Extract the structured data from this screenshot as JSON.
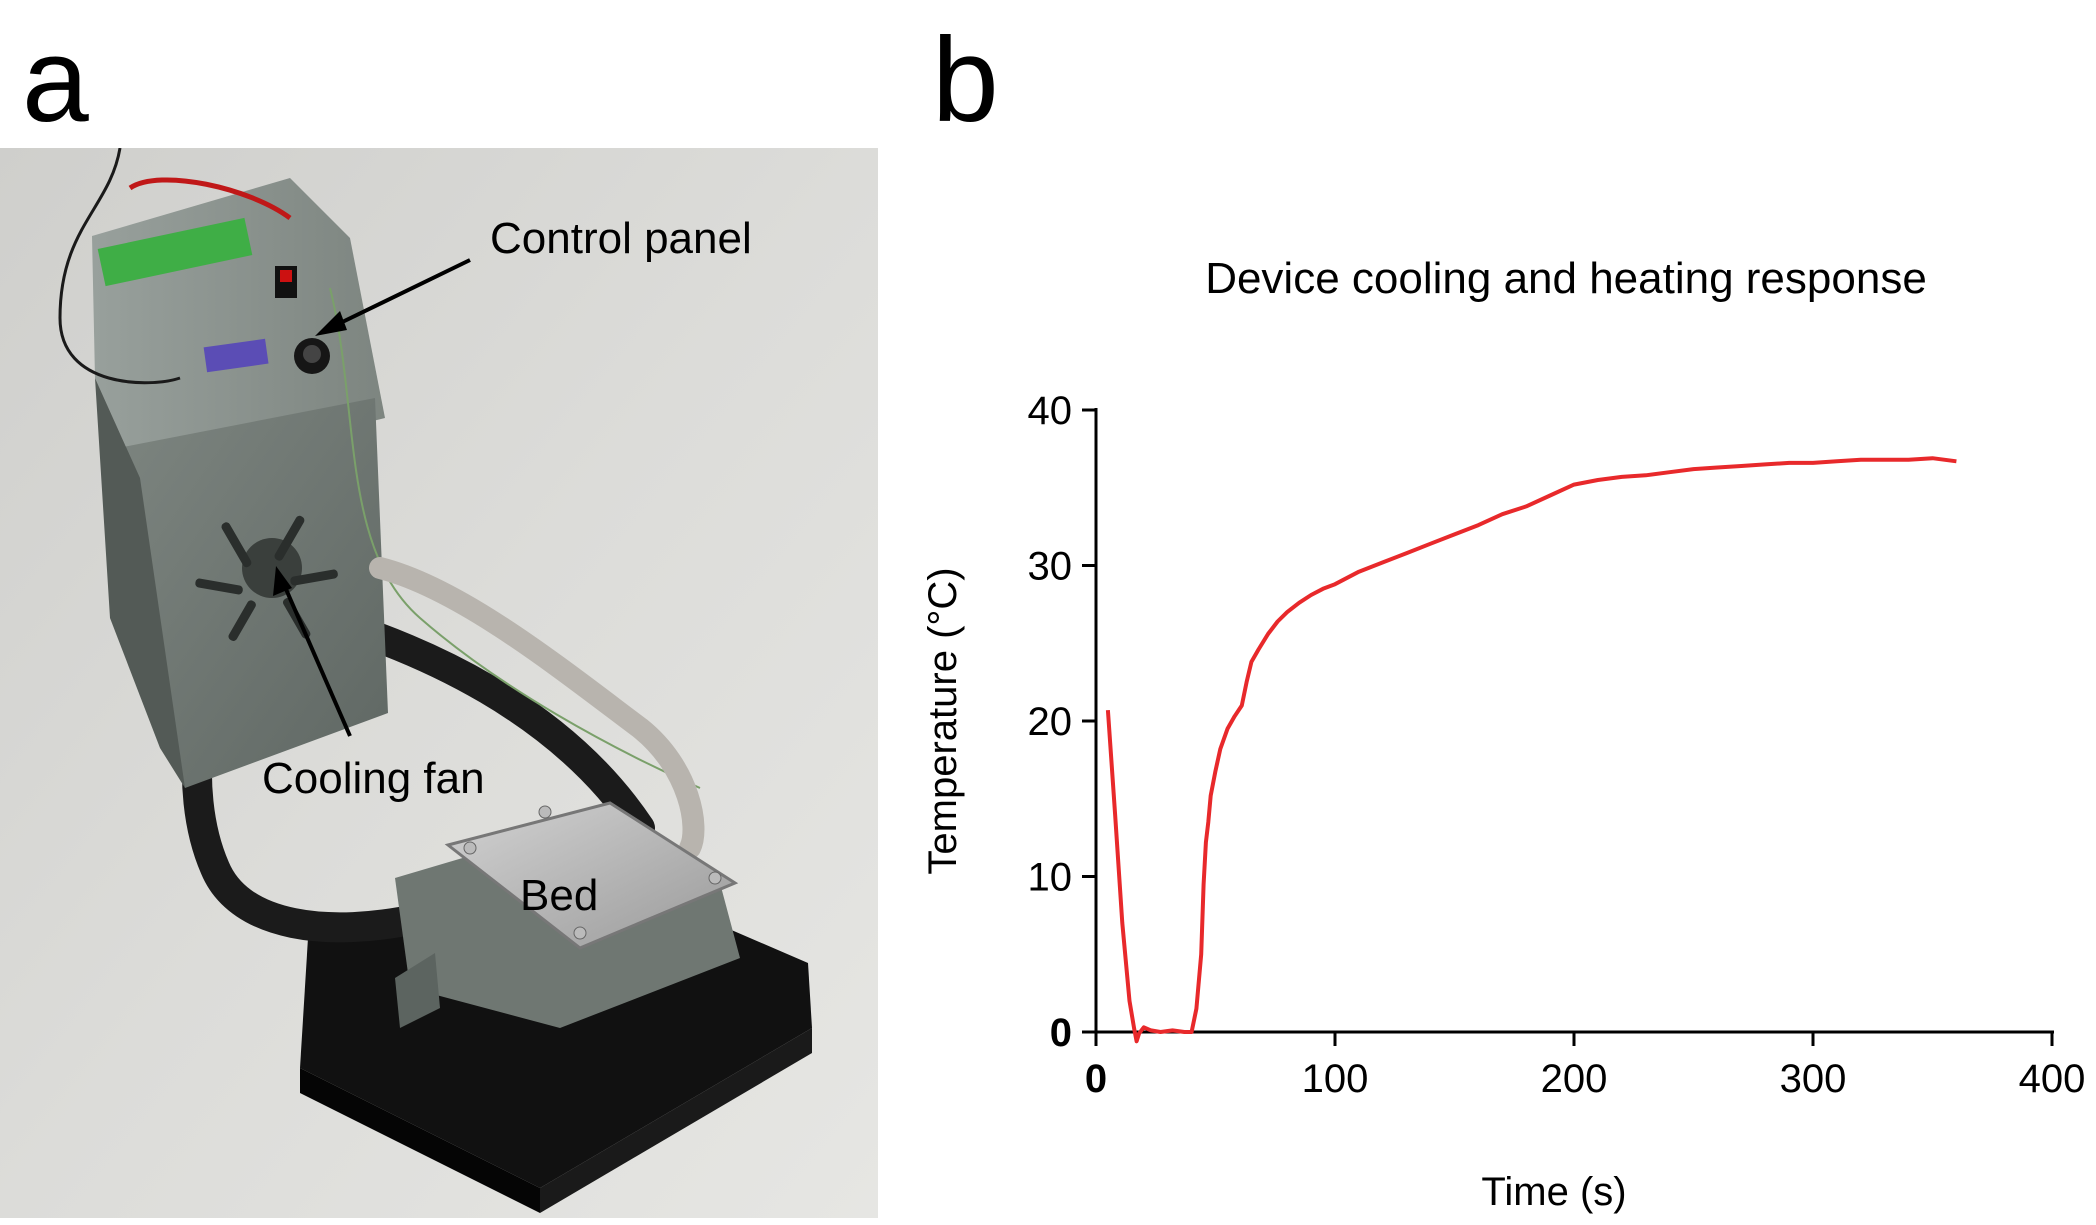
{
  "panels": {
    "a": "a",
    "b": "b"
  },
  "photo": {
    "labels": {
      "control_panel": "Control panel",
      "cooling_fan": "Cooling fan",
      "bed": "Bed"
    }
  },
  "chart_data": {
    "type": "line",
    "title": "Device cooling and heating response",
    "xlabel": "Time (s)",
    "ylabel": "Temperature (°C)",
    "xlim": [
      0,
      400
    ],
    "ylim": [
      0,
      40
    ],
    "xticks": [
      0,
      100,
      200,
      300,
      400
    ],
    "yticks": [
      0,
      10,
      20,
      30,
      40
    ],
    "grid": false,
    "line_color": "#e8292b",
    "series": [
      {
        "x": [
          5,
          8,
          11,
          14,
          16,
          17,
          18,
          20,
          23,
          27,
          32,
          37,
          40,
          42,
          44,
          45,
          46,
          47,
          48,
          50,
          52,
          55,
          58,
          61,
          63,
          65,
          68,
          72,
          76,
          80,
          85,
          90,
          95,
          100,
          110,
          120,
          130,
          140,
          150,
          160,
          170,
          180,
          190,
          200,
          210,
          220,
          230,
          240,
          250,
          260,
          270,
          280,
          290,
          300,
          310,
          320,
          330,
          340,
          350,
          360
        ],
        "y": [
          20.7,
          14,
          7,
          2,
          0.2,
          -0.6,
          -0.1,
          0.3,
          0.1,
          0.0,
          0.1,
          0.0,
          0.0,
          1.5,
          5,
          9.5,
          12.2,
          13.5,
          15.2,
          16.8,
          18.2,
          19.5,
          20.3,
          21.0,
          22.5,
          23.8,
          24.6,
          25.6,
          26.4,
          27.0,
          27.6,
          28.1,
          28.5,
          28.8,
          29.6,
          30.2,
          30.8,
          31.4,
          32.0,
          32.6,
          33.3,
          33.8,
          34.5,
          35.2,
          35.5,
          35.7,
          35.8,
          36.0,
          36.2,
          36.3,
          36.4,
          36.5,
          36.6,
          36.6,
          36.7,
          36.8,
          36.8,
          36.8,
          36.9,
          36.7
        ]
      }
    ]
  }
}
